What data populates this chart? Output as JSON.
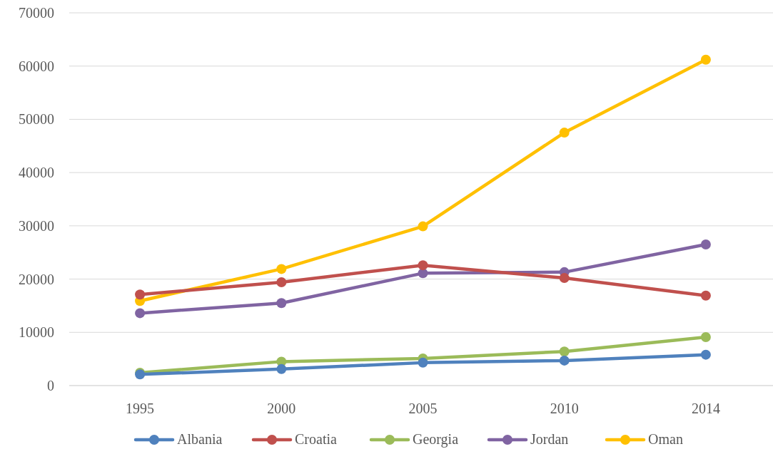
{
  "chart_data": {
    "type": "line",
    "categories": [
      "1995",
      "2000",
      "2005",
      "2010",
      "2014"
    ],
    "series": [
      {
        "name": "Albania",
        "color": "#4f81bd",
        "values": [
          2100,
          3100,
          4300,
          4700,
          5800
        ]
      },
      {
        "name": "Croatia",
        "color": "#c0504d",
        "values": [
          17100,
          19400,
          22600,
          20200,
          16900
        ]
      },
      {
        "name": "Georgia",
        "color": "#9bbb59",
        "values": [
          2400,
          4500,
          5100,
          6400,
          9100
        ]
      },
      {
        "name": "Jordan",
        "color": "#8064a2",
        "values": [
          13600,
          15500,
          21100,
          21300,
          26500
        ]
      },
      {
        "name": "Oman",
        "color": "#ffc000",
        "values": [
          15900,
          21900,
          29900,
          47500,
          61200
        ]
      }
    ],
    "ylim": [
      0,
      70000
    ],
    "yticks": [
      0,
      10000,
      20000,
      30000,
      40000,
      50000,
      60000,
      70000
    ],
    "grid": "y",
    "legend": "bottom",
    "marker": "circle",
    "line_style": "solid"
  }
}
